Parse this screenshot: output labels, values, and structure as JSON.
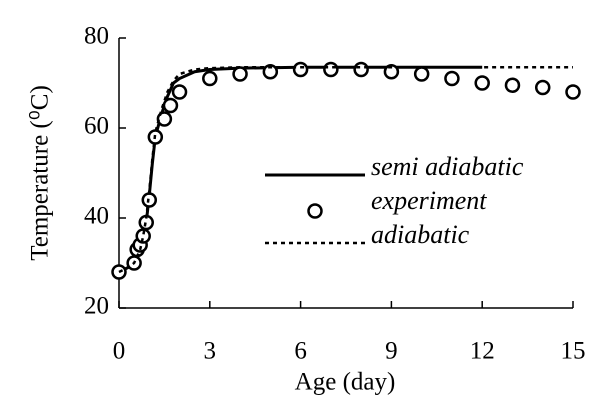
{
  "chart_data": {
    "type": "line",
    "xlabel": "Age (day)",
    "ylabel": "Temperature (⁰C)",
    "xlim": [
      0,
      15
    ],
    "xticks": [
      0,
      3,
      6,
      9,
      12,
      15
    ],
    "ylim": [
      20,
      80
    ],
    "yticks": [
      20,
      40,
      60,
      80
    ],
    "grid": false,
    "legend": "right",
    "series": [
      {
        "name": "semi adiabatic",
        "style": "solid",
        "color": "#000000",
        "x": [
          0,
          0.3,
          0.5,
          0.7,
          0.8,
          0.9,
          1.0,
          1.1,
          1.2,
          1.4,
          1.6,
          1.8,
          2.0,
          2.5,
          3,
          4,
          6,
          9,
          12
        ],
        "values": [
          28,
          29,
          30,
          33,
          36,
          39,
          45,
          52,
          58,
          63,
          67,
          70,
          71,
          72.5,
          73,
          73.3,
          73.5,
          73.5,
          73.5
        ]
      },
      {
        "name": "experiment",
        "style": "markers",
        "color": "#000000",
        "x": [
          0,
          0.5,
          0.6,
          0.7,
          0.8,
          0.9,
          1.0,
          1.2,
          1.5,
          1.7,
          2,
          3,
          4,
          5,
          6,
          7,
          8,
          9,
          10,
          11,
          12,
          13,
          14,
          15
        ],
        "values": [
          28,
          30,
          33,
          34,
          36,
          39,
          44,
          58,
          62,
          65,
          68,
          71,
          72,
          72.5,
          73,
          73,
          73,
          72.5,
          72,
          71,
          70,
          69.5,
          69,
          68
        ]
      },
      {
        "name": "adiabatic",
        "style": "dotted",
        "color": "#000000",
        "x": [
          0,
          0.3,
          0.5,
          0.7,
          0.8,
          0.9,
          1.0,
          1.1,
          1.2,
          1.4,
          1.6,
          1.8,
          2.0,
          2.5,
          3,
          4,
          6,
          9,
          12,
          15
        ],
        "values": [
          28,
          29,
          30,
          33,
          36,
          40,
          46,
          53,
          59,
          64,
          68,
          70.5,
          72,
          73,
          73.3,
          73.5,
          73.5,
          73.5,
          73.5,
          73.5
        ]
      }
    ]
  }
}
